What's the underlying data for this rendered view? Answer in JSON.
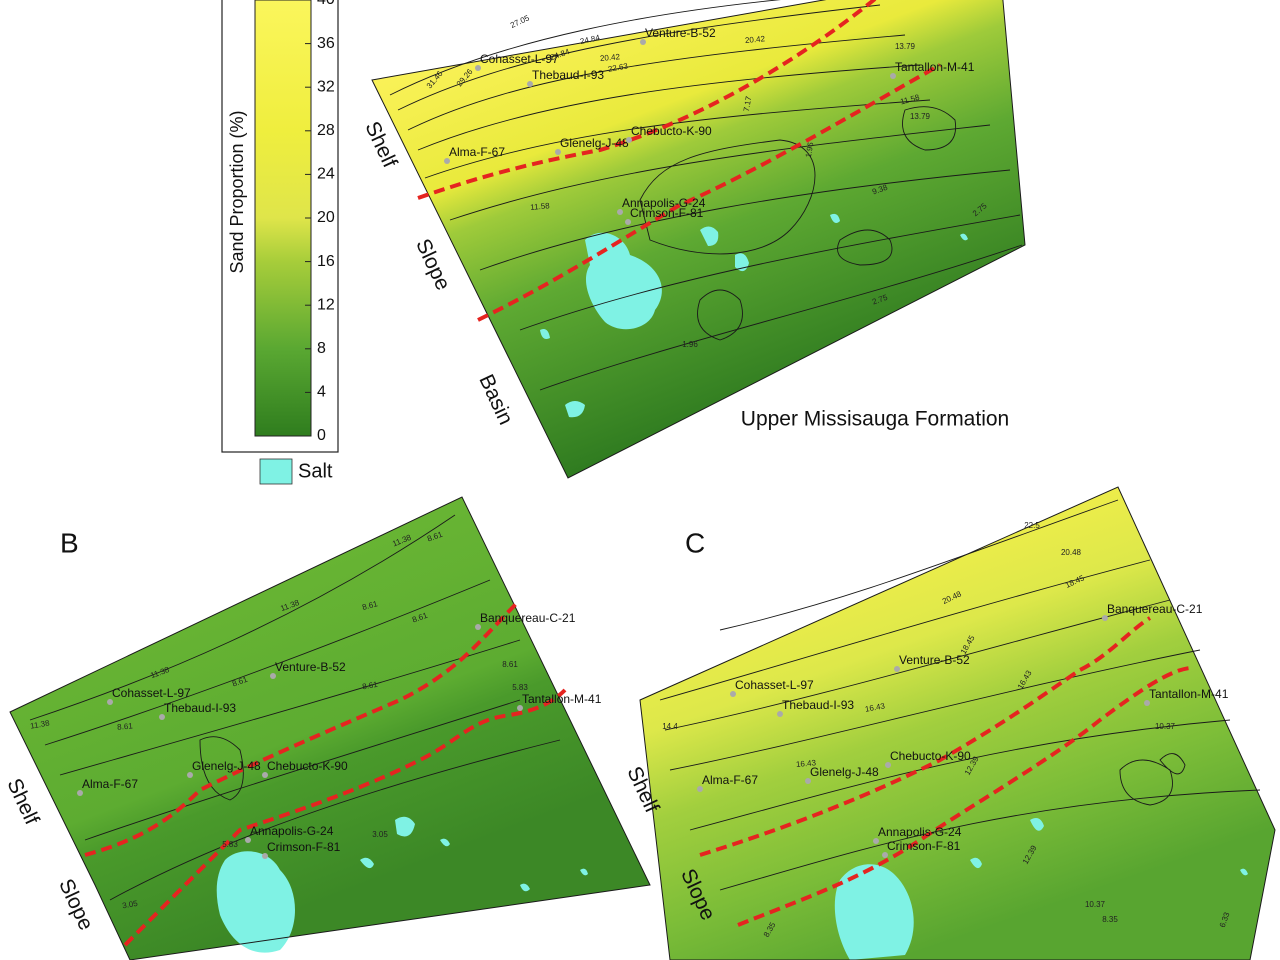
{
  "legend": {
    "title": "Sand Proportion (%)",
    "ticks": [
      0,
      4,
      8,
      12,
      16,
      20,
      24,
      28,
      32,
      36,
      40
    ],
    "range": [
      0,
      40
    ],
    "salt": "Salt"
  },
  "panels": [
    {
      "title": "Upper Missisauga Formation",
      "zones": [
        "Shelf",
        "Slope",
        "Basin"
      ],
      "wells": [
        "Cohasset-L-97",
        "Thebaud-I-93",
        "Venture-B-52",
        "Tantallon-M-41",
        "Alma-F-67",
        "Glenelg-J-48",
        "Chebucto-K-90",
        "Annapolis-G-24",
        "Crimson-F-81"
      ],
      "contour_labels": [
        "27.05",
        "24.84",
        "31.46",
        "29.26",
        "24.84",
        "22.63",
        "20.42",
        "20.42",
        "13.79",
        "13.79",
        "11.58",
        "11.58",
        "9.38",
        "7.17",
        "1.96",
        "2.75",
        "2.75",
        "1.96"
      ]
    },
    {
      "label": "B",
      "zones": [
        "Shelf",
        "Slope"
      ],
      "wells": [
        "Cohasset-L-97",
        "Thebaud-I-93",
        "Venture-B-52",
        "Banquereau-C-21",
        "Tantallon-M-41",
        "Alma-F-67",
        "Glenelg-J-48",
        "Chebucto-K-90",
        "Annapolis-G-24",
        "Crimson-F-81"
      ],
      "contour_labels": [
        "11.38",
        "8.61",
        "11.38",
        "8.61",
        "11.38",
        "8.61",
        "11.38",
        "8.61",
        "8.61",
        "8.61",
        "5.83",
        "8.61",
        "5.83",
        "3.05",
        "3.05"
      ]
    },
    {
      "label": "C",
      "zones": [
        "Shelf",
        "Slope"
      ],
      "wells": [
        "Cohasset-L-97",
        "Thebaud-I-93",
        "Venture-B-52",
        "Banquereau-C-21",
        "Tantallon-M-41",
        "Alma-F-67",
        "Glenelg-J-48",
        "Chebucto-K-90",
        "Annapolis-G-24",
        "Crimson-F-81"
      ],
      "contour_labels": [
        "22.5",
        "20.48",
        "20.48",
        "18.45",
        "18.45",
        "16.43",
        "16.43",
        "16.43",
        "14.4",
        "12.39",
        "12.39",
        "10.37",
        "10.37",
        "8.35",
        "6.33",
        "8.35"
      ]
    }
  ]
}
